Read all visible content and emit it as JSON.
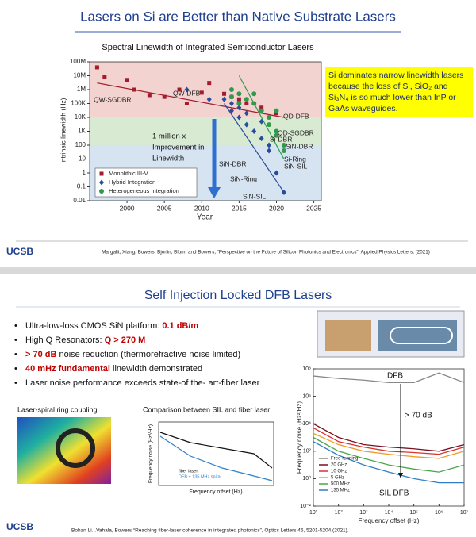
{
  "slides": [
    {
      "title": "Lasers on Si are Better than Native Substrate Lasers",
      "callout": "Si dominates narrow linewidth lasers because the loss of Si, SiO₂ and Si₃N₄ is so much lower than InP or GaAs waveguides.",
      "citation": "Margalit, Xiang, Bowers, Bjorlin, Blum, and Bowers, “Perspective on the Future of Silicon Photonics and Electronics”, Applied Physics Letters, (2021)",
      "logo": "UCSB"
    },
    {
      "title": "Self Injection Locked DFB Lasers",
      "bullets": [
        [
          {
            "text": "Ultra-low-loss CMOS SiN platform: "
          },
          {
            "text": "0.1 dB/m",
            "highlight": true
          }
        ],
        [
          {
            "text": "High Q Resonators: "
          },
          {
            "text": "Q > 270 M",
            "highlight": true
          }
        ],
        [
          {
            "text": "> 70 dB",
            "highlight": true
          },
          {
            "text": " noise reduction  (thermorefractive noise limited)"
          }
        ],
        [
          {
            "text": "40 mHz fundamental",
            "highlight": true
          },
          {
            "text": " linewidth demonstrated"
          }
        ],
        [
          {
            "text": "Laser noise performance exceeds state-of the- art-fiber laser"
          }
        ]
      ],
      "captions": [
        "Laser-spiral ring coupling",
        "Comparison between SIL and fiber laser"
      ],
      "inset": {
        "legend": [
          "fiber laser",
          "DFB + 135 MHz spiral"
        ],
        "xlabel": "Frequency offset (Hz)",
        "ylabel": "Frequency noise (Hz²/Hz)"
      },
      "citation": "Bohan Li...Vahala, Bowers “Reaching fiber-laser coherence in integrated photonics”, Optics Letters 46, 5201-5204 (2021).",
      "logo": "UCSB"
    }
  ],
  "chart_data": [
    {
      "type": "scatter",
      "title": "Spectral Linewidth of Integrated Semiconductor Lasers",
      "xlabel": "Year",
      "ylabel": "Intrinsic linewidth (Hz)",
      "xlim": [
        1995,
        2026
      ],
      "ylim": [
        0.01,
        100000000
      ],
      "log_y": true,
      "xticks": [
        2000,
        2005,
        2010,
        2015,
        2020,
        2025
      ],
      "yticks": [
        {
          "value": 100000000,
          "label": "100M"
        },
        {
          "value": 10000000,
          "label": "10M"
        },
        {
          "value": 1000000,
          "label": "1M"
        },
        {
          "value": 100000,
          "label": "100K"
        },
        {
          "value": 10000,
          "label": "10K"
        },
        {
          "value": 1000,
          "label": "1K"
        },
        100,
        10,
        1,
        0.1,
        0.01
      ],
      "bands": [
        {
          "from": 10000,
          "to": 100000000,
          "color": "#f3d3cf"
        },
        {
          "from": 100,
          "to": 10000,
          "color": "#d9ead3"
        },
        {
          "from": 0.01,
          "to": 100,
          "color": "#d6e3f1"
        }
      ],
      "series": [
        {
          "name": "Monolithic III-V",
          "color": "#a31b2c",
          "marker": "square",
          "x": [
            1996,
            1997,
            2000,
            2001,
            2003,
            2005,
            2007,
            2008,
            2010,
            2011,
            2013,
            2014,
            2015,
            2016,
            2017,
            2018,
            2020
          ],
          "values": [
            40000000,
            8000000,
            5000000,
            1000000,
            400000,
            300000,
            1000000,
            100000,
            600000,
            3000000,
            500000,
            300000,
            200000,
            100000,
            100000,
            50000,
            20000
          ]
        },
        {
          "name": "Hybrid Integration",
          "color": "#2b4c9b",
          "marker": "diamond",
          "x": [
            2008,
            2011,
            2013,
            2014,
            2014,
            2015,
            2015,
            2016,
            2016,
            2017,
            2018,
            2018,
            2019,
            2019,
            2020,
            2021
          ],
          "values": [
            1000000,
            200000,
            200000,
            100000,
            30000,
            50000,
            10000,
            20000,
            3000,
            1000,
            5000,
            300,
            100,
            40,
            1,
            0.04
          ]
        },
        {
          "name": "Heterogeneous Integration",
          "color": "#2f9a4b",
          "marker": "circle",
          "x": [
            2014,
            2014,
            2015,
            2015,
            2016,
            2017,
            2017,
            2018,
            2019,
            2019,
            2020,
            2020,
            2020,
            2021,
            2021
          ],
          "values": [
            300000,
            1000000,
            500000,
            100000,
            200000,
            500000,
            100000,
            30000,
            10000,
            3000,
            1000,
            500,
            30000,
            100,
            40
          ]
        }
      ],
      "trend_lines": [
        {
          "color": "#a31b2c",
          "x": [
            1996,
            2021
          ],
          "values": [
            3000000,
            10000
          ]
        },
        {
          "color": "#2f9a4b",
          "x": [
            2015,
            2021
          ],
          "values": [
            10000000,
            10
          ]
        },
        {
          "color": "#2b4c9b",
          "x": [
            2013,
            2021
          ],
          "values": [
            100000,
            0.04
          ]
        }
      ],
      "annotations": [
        "QW-SGDBR",
        "QW-DFB",
        "QD-DFB",
        "QD-SGDBR",
        "Si-DBR",
        "SiN-DBR",
        "Si-Ring",
        "SiN-SIL",
        "SiN-DBR",
        "SiN-Ring",
        "SiN-SIL"
      ],
      "improvement": [
        "1 million x",
        "Improvement in",
        "Linewidth"
      ]
    },
    {
      "type": "line",
      "xlabel": "Frequency offset (Hz)",
      "ylabel": "Frequency noise (Hz²/Hz)",
      "xlim": [
        10,
        10000000
      ],
      "ylim": [
        0.01,
        100000000
      ],
      "log_x": true,
      "log_y": true,
      "xticks": [
        {
          "value": 10,
          "label": "10¹"
        },
        {
          "value": 100,
          "label": "10²"
        },
        {
          "value": 1000,
          "label": "10³"
        },
        {
          "value": 10000,
          "label": "10⁴"
        },
        {
          "value": 100000,
          "label": "10⁵"
        },
        {
          "value": 1000000,
          "label": "10⁶"
        },
        {
          "value": 10000000,
          "label": "10⁷"
        }
      ],
      "yticks": [
        {
          "value": 100000000,
          "label": "10⁸"
        },
        {
          "value": 1000000,
          "label": "10⁶"
        },
        {
          "value": 10000,
          "label": "10⁴"
        },
        {
          "value": 100,
          "label": "10²"
        },
        {
          "value": 1,
          "label": "10⁰"
        },
        {
          "value": 0.01,
          "label": "10⁻²"
        }
      ],
      "x": [
        10,
        100,
        1000,
        10000,
        100000,
        1000000,
        10000000
      ],
      "series": [
        {
          "name": "Free-running",
          "color": "#888888",
          "values": [
            30000000,
            20000000,
            15000000,
            10000000,
            10000000,
            50000000,
            10000000
          ]
        },
        {
          "name": "20 GHz",
          "color": "#7a1020",
          "values": [
            10000,
            1000,
            300,
            200,
            150,
            100,
            300
          ]
        },
        {
          "name": "10 GHz",
          "color": "#d8342a",
          "values": [
            5000,
            500,
            200,
            100,
            80,
            60,
            200
          ]
        },
        {
          "name": "5 GHz",
          "color": "#f09a2a",
          "values": [
            2000,
            300,
            100,
            60,
            40,
            30,
            100
          ]
        },
        {
          "name": "500 MHz",
          "color": "#4aa54a",
          "values": [
            1000,
            100,
            30,
            10,
            5,
            3,
            10
          ]
        },
        {
          "name": "135 MHz",
          "color": "#2f7fc8",
          "values": [
            500,
            50,
            10,
            3,
            1,
            0.5,
            0.5
          ]
        }
      ],
      "annotations": [
        "DFB",
        "> 70 dB",
        "SIL DFB"
      ]
    }
  ]
}
